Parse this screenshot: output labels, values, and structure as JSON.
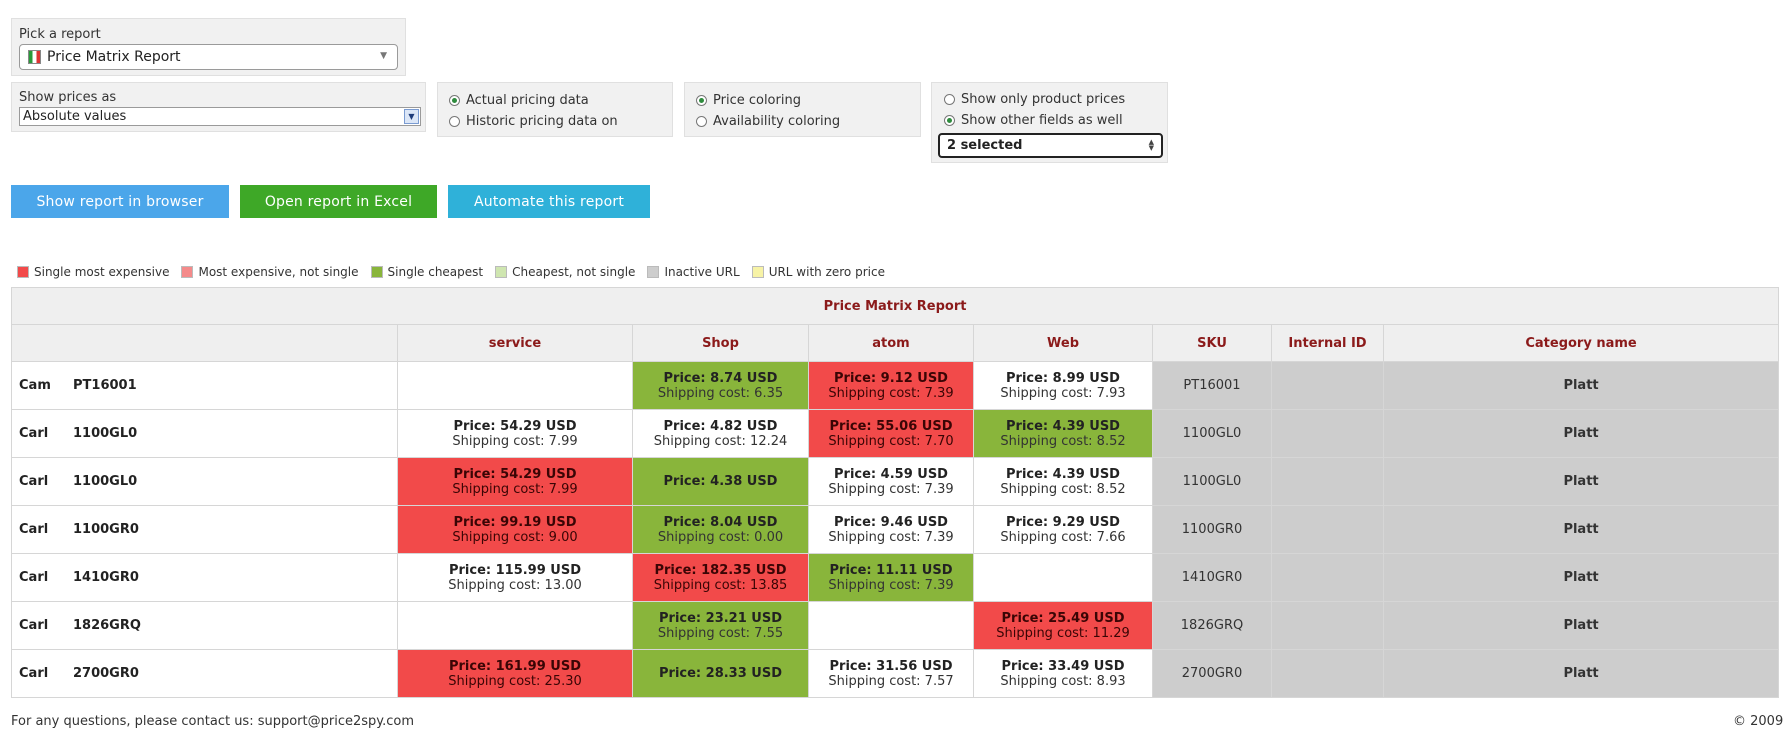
{
  "report_picker": {
    "label": "Pick a report",
    "value": "Price Matrix Report"
  },
  "show_prices": {
    "label": "Show prices as",
    "value": "Absolute values"
  },
  "pricing_data": {
    "options": [
      {
        "label": "Actual pricing data",
        "selected": true
      },
      {
        "label": "Historic pricing data on",
        "selected": false
      }
    ]
  },
  "coloring": {
    "options": [
      {
        "label": "Price coloring",
        "selected": true
      },
      {
        "label": "Availability coloring",
        "selected": false
      }
    ]
  },
  "fields": {
    "options": [
      {
        "label": "Show only product prices",
        "selected": false
      },
      {
        "label": "Show other fields as well",
        "selected": true
      }
    ],
    "multi_select_value": "2 selected"
  },
  "buttons": {
    "show_browser": "Show report in browser",
    "open_excel": "Open report in Excel",
    "automate": "Automate this report"
  },
  "colors": {
    "single_most_expensive": "#f24a4a",
    "most_expensive_not_single": "#f48a8a",
    "single_cheapest": "#89b53b",
    "cheapest_not_single": "#cfe6b0",
    "inactive_url": "#cdcdcd",
    "zero_price": "#f7f3a6",
    "btn_browser": "#4ba6ea",
    "btn_excel": "#3ea827",
    "btn_automate": "#2fb1d9"
  },
  "legend": [
    {
      "label": "Single most expensive",
      "color": "#f24a4a"
    },
    {
      "label": "Most expensive, not single",
      "color": "#f48a8a"
    },
    {
      "label": "Single cheapest",
      "color": "#89b53b"
    },
    {
      "label": "Cheapest, not single",
      "color": "#cfe6b0"
    },
    {
      "label": "Inactive URL",
      "color": "#cdcdcd"
    },
    {
      "label": "URL with zero price",
      "color": "#f7f3a6"
    }
  ],
  "table": {
    "title": "Price Matrix Report",
    "columns": [
      "",
      "service",
      "Shop",
      "atom",
      "Web",
      "SKU",
      "Internal ID",
      "Category name"
    ],
    "rows": [
      {
        "name": "Cam",
        "code": "PT16001",
        "cells": [
          {
            "color": "white"
          },
          {
            "price": "Price: 8.74 USD",
            "shipping": "Shipping cost: 6.35",
            "color": "green"
          },
          {
            "price": "Price: 9.12 USD",
            "shipping": "Shipping cost: 7.39",
            "color": "red"
          },
          {
            "price": "Price: 8.99 USD",
            "shipping": "Shipping cost: 7.93",
            "color": "white"
          }
        ],
        "sku": "PT16001",
        "internal_id": "",
        "category": "Platt"
      },
      {
        "name": "Carl",
        "code": "1100GL0",
        "cells": [
          {
            "price": "Price: 54.29 USD",
            "shipping": "Shipping cost: 7.99",
            "color": "white"
          },
          {
            "price": "Price: 4.82 USD",
            "shipping": "Shipping cost: 12.24",
            "color": "white"
          },
          {
            "price": "Price: 55.06 USD",
            "shipping": "Shipping cost: 7.70",
            "color": "red"
          },
          {
            "price": "Price: 4.39 USD",
            "shipping": "Shipping cost: 8.52",
            "color": "green"
          }
        ],
        "sku": "1100GL0",
        "internal_id": "",
        "category": "Platt"
      },
      {
        "name": "Carl",
        "code": "1100GL0",
        "cells": [
          {
            "price": "Price: 54.29 USD",
            "shipping": "Shipping cost: 7.99",
            "color": "red"
          },
          {
            "price": "Price: 4.38 USD",
            "shipping": "",
            "color": "green"
          },
          {
            "price": "Price: 4.59 USD",
            "shipping": "Shipping cost: 7.39",
            "color": "white"
          },
          {
            "price": "Price: 4.39 USD",
            "shipping": "Shipping cost: 8.52",
            "color": "white"
          }
        ],
        "sku": "1100GL0",
        "internal_id": "",
        "category": "Platt"
      },
      {
        "name": "Carl",
        "code": "1100GR0",
        "cells": [
          {
            "price": "Price: 99.19 USD",
            "shipping": "Shipping cost: 9.00",
            "color": "red"
          },
          {
            "price": "Price: 8.04 USD",
            "shipping": "Shipping cost: 0.00",
            "color": "green"
          },
          {
            "price": "Price: 9.46 USD",
            "shipping": "Shipping cost: 7.39",
            "color": "white"
          },
          {
            "price": "Price: 9.29 USD",
            "shipping": "Shipping cost: 7.66",
            "color": "white"
          }
        ],
        "sku": "1100GR0",
        "internal_id": "",
        "category": "Platt"
      },
      {
        "name": "Carl",
        "code": "1410GR0",
        "cells": [
          {
            "price": "Price: 115.99 USD",
            "shipping": "Shipping cost: 13.00",
            "color": "white"
          },
          {
            "price": "Price: 182.35 USD",
            "shipping": "Shipping cost: 13.85",
            "color": "red"
          },
          {
            "price": "Price: 11.11 USD",
            "shipping": "Shipping cost: 7.39",
            "color": "green"
          },
          {
            "color": "white"
          }
        ],
        "sku": "1410GR0",
        "internal_id": "",
        "category": "Platt"
      },
      {
        "name": "Carl",
        "code": "1826GRQ",
        "cells": [
          {
            "color": "white"
          },
          {
            "price": "Price: 23.21 USD",
            "shipping": "Shipping cost: 7.55",
            "color": "green"
          },
          {
            "color": "white"
          },
          {
            "price": "Price: 25.49 USD",
            "shipping": "Shipping cost: 11.29",
            "color": "red"
          }
        ],
        "sku": "1826GRQ",
        "internal_id": "",
        "category": "Platt"
      },
      {
        "name": "Carl",
        "code": "2700GR0",
        "cells": [
          {
            "price": "Price: 161.99 USD",
            "shipping": "Shipping cost: 25.30",
            "color": "red"
          },
          {
            "price": "Price: 28.33 USD",
            "shipping": "",
            "color": "green"
          },
          {
            "price": "Price: 31.56 USD",
            "shipping": "Shipping cost: 7.57",
            "color": "white"
          },
          {
            "price": "Price: 33.49 USD",
            "shipping": "Shipping cost: 8.93",
            "color": "white"
          }
        ],
        "sku": "2700GR0",
        "internal_id": "",
        "category": "Platt"
      }
    ]
  },
  "footer": {
    "contact": "For any questions, please contact us: support@price2spy.com",
    "copyright": "© 2009"
  }
}
